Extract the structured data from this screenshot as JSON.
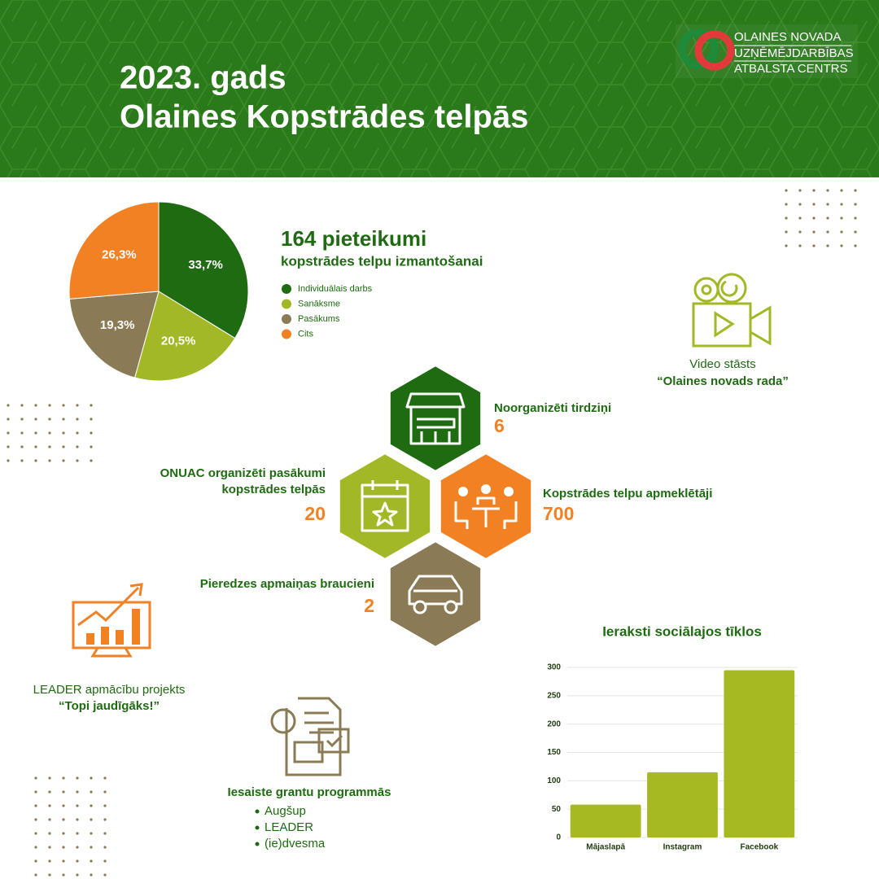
{
  "header": {
    "title_lines": [
      "2023. gads",
      "Olaines Kopstrādes telpās"
    ],
    "logo_lines": [
      "OLAINES NOVADA",
      "UZŅĒMĒJDARBĪBAS",
      "ATBALSTA CENTRS"
    ]
  },
  "chart_data": [
    {
      "type": "pie",
      "title": "164 pieteikumi",
      "subtitle": "kopstrādes telpu izmantošanai",
      "series": [
        {
          "name": "Individuālais darbs",
          "color": "#1f6b12"
        },
        {
          "name": "Sanāksme",
          "color": "#a3b826"
        },
        {
          "name": "Pasākums",
          "color": "#8a7b56"
        },
        {
          "name": "Cits",
          "color": "#f28123"
        }
      ],
      "values": [
        33.7,
        20.5,
        19.3,
        26.3
      ],
      "value_labels": [
        "33,7%",
        "20,5%",
        "19,3%",
        "26,3%"
      ]
    },
    {
      "type": "bar",
      "title": "Ieraksti sociālajos tīklos",
      "categories": [
        "Mājaslapā",
        "Instagram",
        "Facebook"
      ],
      "values": [
        58,
        115,
        295
      ],
      "color": "#a6b922",
      "ylim": [
        0,
        300
      ],
      "yticks": [
        0,
        50,
        100,
        150,
        200,
        250,
        300
      ],
      "grid": true
    }
  ],
  "stats": [
    {
      "label": [
        "Noorganizēti tirdziņi"
      ],
      "value": 6
    },
    {
      "label": [
        "ONUAC organizēti pasākumi",
        "kopstrādes telpās"
      ],
      "value": 20
    },
    {
      "label": [
        "Kopstrādes telpu apmeklētāji"
      ],
      "value": 700
    },
    {
      "label": [
        "Pieredzes apmaiņas braucieni"
      ],
      "value": 2
    }
  ],
  "video": {
    "line1": "Video stāsts",
    "line2": "“Olaines novads rada”"
  },
  "leader": {
    "line1": "LEADER apmācību projekts",
    "line2": "“Topi jaudīgāks!”"
  },
  "grants": {
    "title": "Iesaiste grantu programmās",
    "items": [
      "Augšup",
      "LEADER",
      "(ie)dvesma"
    ]
  }
}
